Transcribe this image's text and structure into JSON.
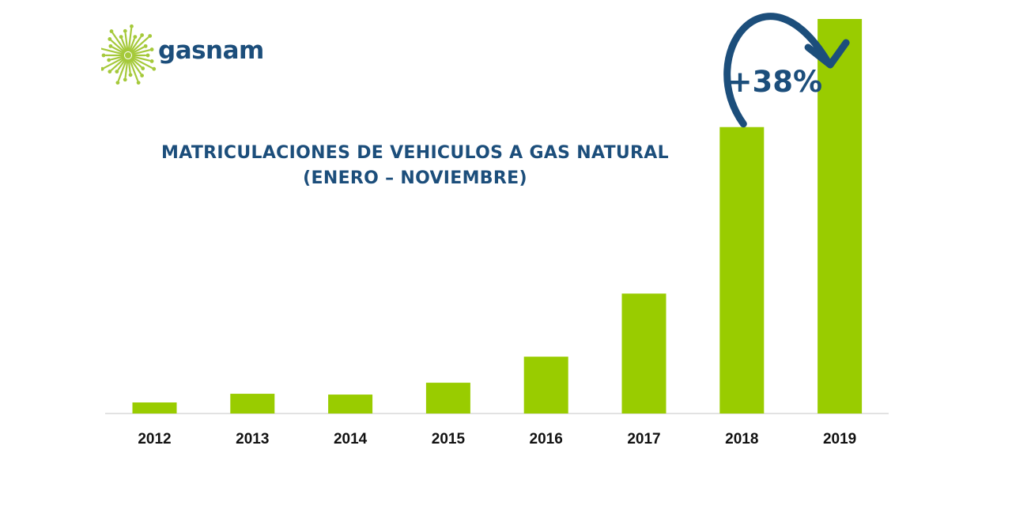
{
  "brand": {
    "name": "gasnam",
    "logo_icon": "dandelion-seed-icon",
    "text_color": "#1c4e7b",
    "accent_color": "#a5c93a"
  },
  "colors": {
    "bar": "#99cc00",
    "title": "#1c4e7b",
    "arrow": "#1c4e7b",
    "axis": "#d9d9d9",
    "tick_text": "#111111"
  },
  "chart_data": {
    "type": "bar",
    "title": "MATRICULACIONES DE VEHICULOS  A GAS NATURAL",
    "subtitle": "(ENERO – NOVIEMBRE)",
    "xlabel": "",
    "ylabel": "",
    "categories": [
      "2012",
      "2013",
      "2014",
      "2015",
      "2016",
      "2017",
      "2018",
      "2019"
    ],
    "values": [
      140,
      250,
      240,
      390,
      720,
      1520,
      3630,
      5000
    ],
    "ylim": [
      0,
      5000
    ],
    "y_axis_shown": false,
    "grid": false,
    "legend": "none",
    "annotations": [
      {
        "text": "+38%",
        "from_category": "2018",
        "to_category": "2019",
        "type": "curved-arrow"
      }
    ]
  }
}
